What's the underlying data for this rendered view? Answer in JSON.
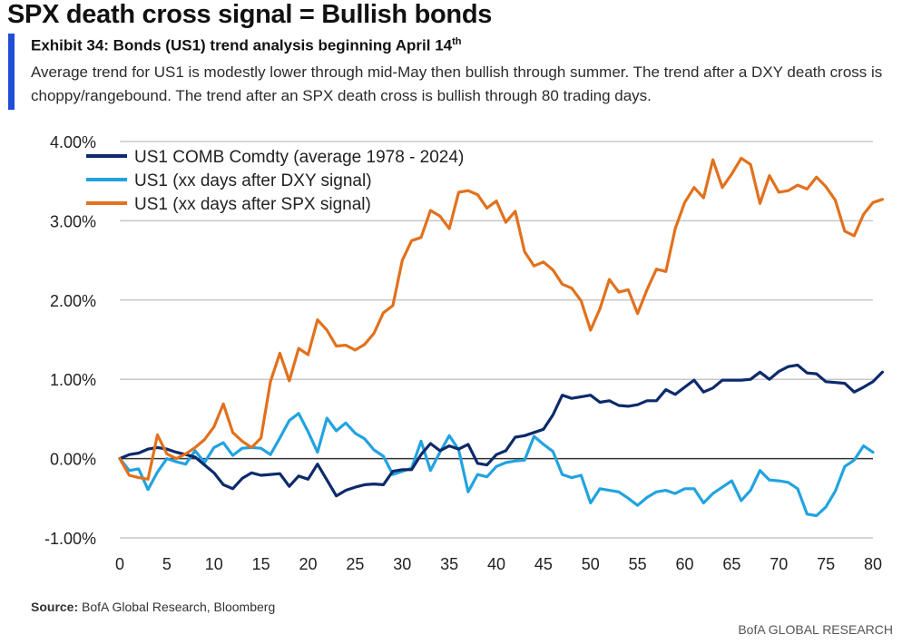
{
  "header": {
    "headline": "SPX death cross signal = Bullish bonds",
    "exhibit_title": "Exhibit 34: Bonds (US1) trend analysis beginning April 14",
    "exhibit_superscript": "th",
    "description": "Average trend for US1 is modestly lower through mid-May then bullish through summer. The trend after a DXY death cross is choppy/rangebound. The trend after an SPX death cross is bullish through 80 trading days."
  },
  "footer": {
    "source_label": "Source:",
    "source_text": " BofA Global Research, Bloomberg",
    "brand": "BofA GLOBAL RESEARCH"
  },
  "colors": {
    "accent": "#1f4ed8"
  },
  "chart_data": {
    "type": "line",
    "ylim": [
      -1.0,
      4.0
    ],
    "xlim": [
      0,
      80
    ],
    "y_ticks": [
      -1.0,
      0.0,
      1.0,
      2.0,
      3.0,
      4.0
    ],
    "y_tick_labels": [
      "-1.00%",
      "0.00%",
      "1.00%",
      "2.00%",
      "3.00%",
      "4.00%"
    ],
    "x_ticks": [
      0,
      5,
      10,
      15,
      20,
      25,
      30,
      35,
      40,
      45,
      50,
      55,
      60,
      65,
      70,
      75,
      80
    ],
    "x_tick_labels": [
      "0",
      "5",
      "10",
      "15",
      "20",
      "25",
      "30",
      "35",
      "40",
      "45",
      "50",
      "55",
      "60",
      "65",
      "70",
      "75",
      "80"
    ],
    "grid": "horizontal",
    "legend_position": "top-left",
    "series": [
      {
        "name": "US1 COMB Comdty (average 1978 - 2024)",
        "color": "#0d2a6b",
        "values": [
          0.0,
          0.05,
          0.07,
          0.12,
          0.14,
          0.12,
          0.08,
          0.05,
          0.02,
          -0.08,
          -0.18,
          -0.33,
          -0.38,
          -0.25,
          -0.18,
          -0.21,
          -0.2,
          -0.19,
          -0.35,
          -0.22,
          -0.26,
          -0.07,
          -0.27,
          -0.47,
          -0.4,
          -0.36,
          -0.33,
          -0.32,
          -0.33,
          -0.16,
          -0.14,
          -0.14,
          0.05,
          0.19,
          0.1,
          0.16,
          0.12,
          0.18,
          -0.06,
          -0.08,
          0.05,
          0.1,
          0.27,
          0.29,
          0.33,
          0.37,
          0.55,
          0.8,
          0.76,
          0.78,
          0.8,
          0.71,
          0.73,
          0.67,
          0.66,
          0.68,
          0.73,
          0.73,
          0.87,
          0.81,
          0.9,
          0.99,
          0.84,
          0.89,
          0.99,
          0.99,
          0.99,
          1.0,
          1.09,
          1.0,
          1.1,
          1.16,
          1.18,
          1.08,
          1.07,
          0.97,
          0.96,
          0.95,
          0.84,
          0.9,
          0.97,
          1.09
        ]
      },
      {
        "name": "US1 (xx days after DXY signal)",
        "color": "#22a3e0",
        "values": [
          0.0,
          -0.15,
          -0.13,
          -0.39,
          -0.17,
          0.0,
          -0.04,
          -0.07,
          0.1,
          -0.05,
          0.14,
          0.2,
          0.04,
          0.13,
          0.14,
          0.13,
          0.05,
          0.26,
          0.48,
          0.57,
          0.34,
          0.08,
          0.51,
          0.35,
          0.45,
          0.32,
          0.25,
          0.11,
          0.03,
          -0.2,
          -0.16,
          -0.12,
          0.22,
          -0.15,
          0.08,
          0.29,
          0.11,
          -0.42,
          -0.2,
          -0.23,
          -0.1,
          -0.05,
          -0.03,
          -0.02,
          0.28,
          0.18,
          0.09,
          -0.2,
          -0.24,
          -0.21,
          -0.56,
          -0.38,
          -0.4,
          -0.42,
          -0.5,
          -0.59,
          -0.49,
          -0.42,
          -0.4,
          -0.44,
          -0.38,
          -0.38,
          -0.56,
          -0.44,
          -0.36,
          -0.28,
          -0.53,
          -0.4,
          -0.15,
          -0.27,
          -0.28,
          -0.3,
          -0.38,
          -0.7,
          -0.72,
          -0.61,
          -0.41,
          -0.1,
          -0.02,
          0.16,
          0.08
        ]
      },
      {
        "name": "US1 (xx days after SPX signal)",
        "color": "#e2711d",
        "values": [
          0.0,
          -0.21,
          -0.24,
          -0.26,
          0.3,
          0.06,
          0.0,
          0.06,
          0.14,
          0.24,
          0.4,
          0.69,
          0.33,
          0.22,
          0.14,
          0.26,
          0.97,
          1.33,
          0.98,
          1.39,
          1.31,
          1.75,
          1.62,
          1.42,
          1.43,
          1.37,
          1.44,
          1.58,
          1.84,
          1.93,
          2.5,
          2.75,
          2.79,
          3.13,
          3.06,
          2.9,
          3.36,
          3.38,
          3.33,
          3.16,
          3.25,
          2.98,
          3.12,
          2.61,
          2.43,
          2.48,
          2.38,
          2.2,
          2.15,
          1.99,
          1.62,
          1.89,
          2.26,
          2.1,
          2.13,
          1.83,
          2.13,
          2.39,
          2.36,
          2.9,
          3.23,
          3.42,
          3.29,
          3.77,
          3.42,
          3.59,
          3.79,
          3.71,
          3.22,
          3.57,
          3.36,
          3.38,
          3.45,
          3.4,
          3.55,
          3.43,
          3.26,
          2.87,
          2.81,
          3.08,
          3.23,
          3.27
        ]
      }
    ]
  }
}
